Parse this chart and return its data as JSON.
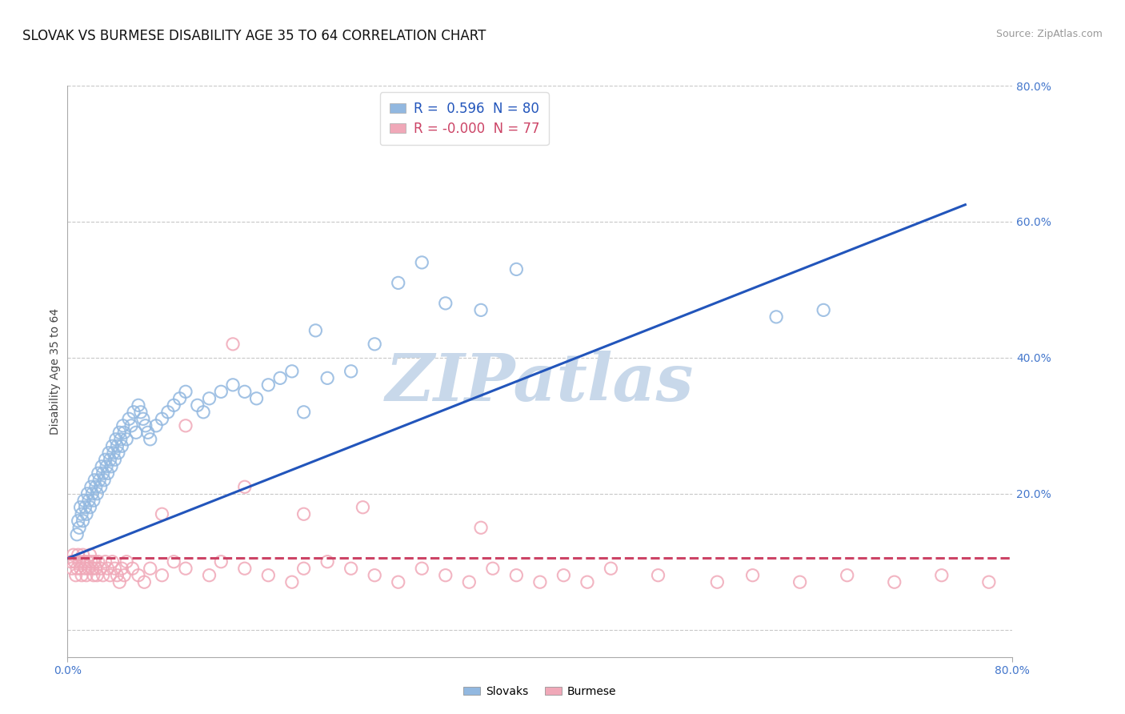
{
  "title": "SLOVAK VS BURMESE DISABILITY AGE 35 TO 64 CORRELATION CHART",
  "source_text": "Source: ZipAtlas.com",
  "ylabel": "Disability Age 35 to 64",
  "xlim": [
    0.0,
    0.8
  ],
  "ylim": [
    -0.04,
    0.8
  ],
  "ytick_positions": [
    0.0,
    0.2,
    0.4,
    0.6,
    0.8
  ],
  "ytick_labels": [
    "20.0%",
    "40.0%",
    "60.0%",
    "80.0%"
  ],
  "grid_color": "#c8c8c8",
  "background_color": "#ffffff",
  "watermark_text": "ZIPatlas",
  "watermark_color": "#c8d8ea",
  "slovak_color": "#92b8e0",
  "burmese_color": "#f0a8b8",
  "slovak_line_color": "#2255bb",
  "burmese_line_color": "#cc4466",
  "legend_slovak_R": "0.596",
  "legend_slovak_N": "80",
  "legend_burmese_R": "-0.000",
  "legend_burmese_N": "77",
  "slovak_x": [
    0.008,
    0.009,
    0.01,
    0.011,
    0.012,
    0.013,
    0.014,
    0.015,
    0.016,
    0.017,
    0.018,
    0.019,
    0.02,
    0.021,
    0.022,
    0.023,
    0.024,
    0.025,
    0.026,
    0.027,
    0.028,
    0.029,
    0.03,
    0.031,
    0.032,
    0.033,
    0.034,
    0.035,
    0.036,
    0.037,
    0.038,
    0.039,
    0.04,
    0.041,
    0.042,
    0.043,
    0.044,
    0.045,
    0.046,
    0.047,
    0.048,
    0.05,
    0.052,
    0.054,
    0.056,
    0.058,
    0.06,
    0.062,
    0.064,
    0.066,
    0.068,
    0.07,
    0.075,
    0.08,
    0.085,
    0.09,
    0.095,
    0.1,
    0.11,
    0.115,
    0.12,
    0.13,
    0.14,
    0.15,
    0.16,
    0.17,
    0.18,
    0.19,
    0.2,
    0.21,
    0.22,
    0.24,
    0.26,
    0.28,
    0.3,
    0.32,
    0.35,
    0.38,
    0.6,
    0.64
  ],
  "slovak_y": [
    0.14,
    0.16,
    0.15,
    0.18,
    0.17,
    0.16,
    0.19,
    0.18,
    0.17,
    0.2,
    0.19,
    0.18,
    0.21,
    0.2,
    0.19,
    0.22,
    0.21,
    0.2,
    0.23,
    0.22,
    0.21,
    0.24,
    0.23,
    0.22,
    0.25,
    0.24,
    0.23,
    0.26,
    0.25,
    0.24,
    0.27,
    0.26,
    0.25,
    0.28,
    0.27,
    0.26,
    0.29,
    0.28,
    0.27,
    0.3,
    0.29,
    0.28,
    0.31,
    0.3,
    0.32,
    0.29,
    0.33,
    0.32,
    0.31,
    0.3,
    0.29,
    0.28,
    0.3,
    0.31,
    0.32,
    0.33,
    0.34,
    0.35,
    0.33,
    0.32,
    0.34,
    0.35,
    0.36,
    0.35,
    0.34,
    0.36,
    0.37,
    0.38,
    0.32,
    0.44,
    0.37,
    0.38,
    0.42,
    0.51,
    0.54,
    0.48,
    0.47,
    0.53,
    0.46,
    0.47
  ],
  "burmese_x": [
    0.003,
    0.004,
    0.005,
    0.006,
    0.007,
    0.008,
    0.009,
    0.01,
    0.011,
    0.012,
    0.013,
    0.014,
    0.015,
    0.016,
    0.017,
    0.018,
    0.019,
    0.02,
    0.021,
    0.022,
    0.023,
    0.024,
    0.025,
    0.026,
    0.028,
    0.03,
    0.032,
    0.034,
    0.036,
    0.038,
    0.04,
    0.042,
    0.044,
    0.046,
    0.048,
    0.05,
    0.055,
    0.06,
    0.065,
    0.07,
    0.08,
    0.09,
    0.1,
    0.12,
    0.13,
    0.15,
    0.17,
    0.19,
    0.2,
    0.22,
    0.24,
    0.26,
    0.28,
    0.3,
    0.32,
    0.34,
    0.36,
    0.38,
    0.4,
    0.42,
    0.44,
    0.46,
    0.5,
    0.55,
    0.58,
    0.62,
    0.66,
    0.7,
    0.74,
    0.78,
    0.1,
    0.15,
    0.2,
    0.25,
    0.35,
    0.14,
    0.08
  ],
  "burmese_y": [
    0.1,
    0.09,
    0.11,
    0.1,
    0.08,
    0.09,
    0.11,
    0.1,
    0.09,
    0.08,
    0.11,
    0.1,
    0.09,
    0.08,
    0.1,
    0.09,
    0.11,
    0.1,
    0.09,
    0.08,
    0.1,
    0.09,
    0.08,
    0.1,
    0.09,
    0.08,
    0.1,
    0.09,
    0.08,
    0.1,
    0.09,
    0.08,
    0.07,
    0.09,
    0.08,
    0.1,
    0.09,
    0.08,
    0.07,
    0.09,
    0.08,
    0.1,
    0.09,
    0.08,
    0.1,
    0.09,
    0.08,
    0.07,
    0.09,
    0.1,
    0.09,
    0.08,
    0.07,
    0.09,
    0.08,
    0.07,
    0.09,
    0.08,
    0.07,
    0.08,
    0.07,
    0.09,
    0.08,
    0.07,
    0.08,
    0.07,
    0.08,
    0.07,
    0.08,
    0.07,
    0.3,
    0.21,
    0.17,
    0.18,
    0.15,
    0.42,
    0.17
  ],
  "slovak_line_x": [
    0.0,
    0.76
  ],
  "slovak_line_y": [
    0.105,
    0.625
  ],
  "burmese_line_x": [
    0.0,
    0.8
  ],
  "burmese_line_y": [
    0.105,
    0.105
  ]
}
